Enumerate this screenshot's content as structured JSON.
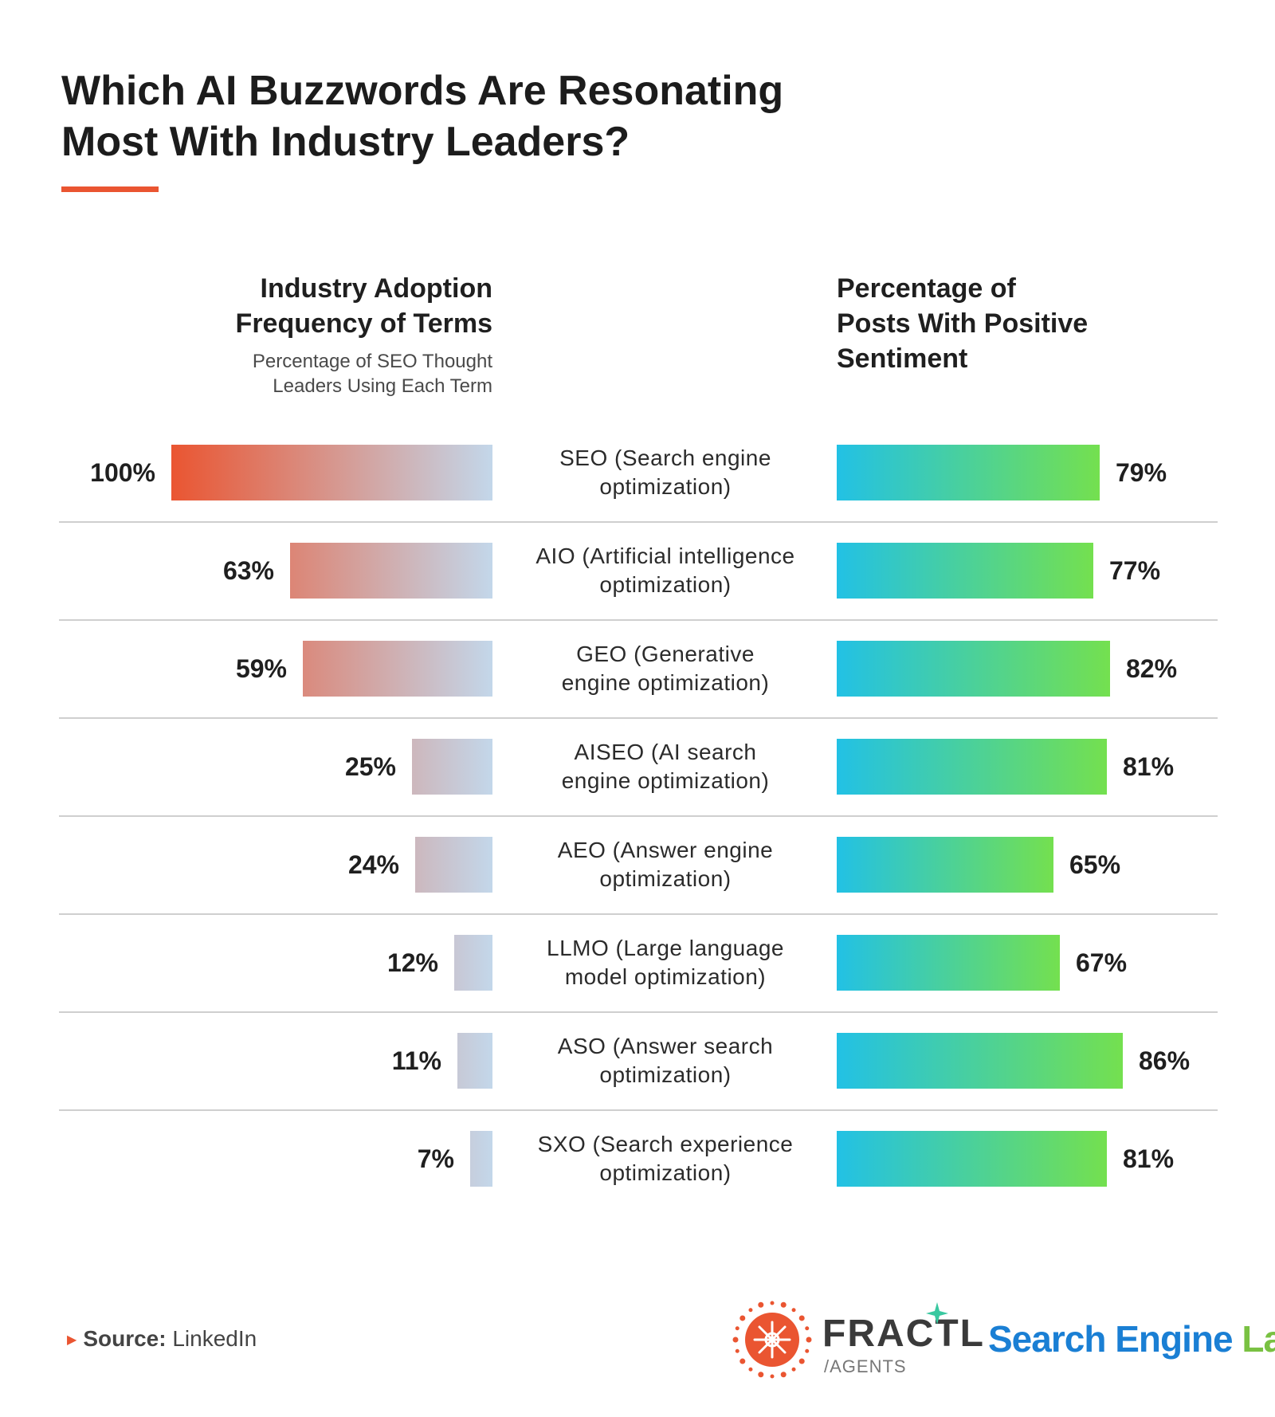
{
  "title": [
    "Which AI Buzzwords Are Resonating",
    "Most With Industry Leaders?"
  ],
  "colors": {
    "accent": "#ea5531",
    "adoption_gradient": [
      "#ea5531",
      "#c3d7ea"
    ],
    "sentiment_gradient": [
      "#22c1e5",
      "#74e04f"
    ],
    "divider": "#cfcfcf"
  },
  "chart_data": {
    "type": "bar",
    "orientation": "horizontal",
    "layout": "mirrored",
    "categories": [
      [
        "SEO (Search engine",
        "optimization)"
      ],
      [
        "AIO (Artificial intelligence",
        "optimization)"
      ],
      [
        "GEO (Generative",
        "engine optimization)"
      ],
      [
        "AISEO (AI search",
        "engine optimization)"
      ],
      [
        "AEO (Answer engine",
        "optimization)"
      ],
      [
        "LLMO (Large language",
        "model optimization)"
      ],
      [
        "ASO (Answer search",
        "optimization)"
      ],
      [
        "SXO (Search experience",
        "optimization)"
      ]
    ],
    "series": [
      {
        "name": [
          "Industry Adoption",
          "Frequency of Terms"
        ],
        "subtitle": [
          "Percentage of SEO Thought",
          "Leaders Using Each Term"
        ],
        "values": [
          100,
          63,
          59,
          25,
          24,
          12,
          11,
          7
        ],
        "labels": [
          "100%",
          "63%",
          "59%",
          "25%",
          "24%",
          "12%",
          "11%",
          "7%"
        ]
      },
      {
        "name": [
          "Percentage of",
          "Posts With Positive",
          "Sentiment"
        ],
        "values": [
          79,
          77,
          82,
          81,
          65,
          67,
          86,
          81
        ],
        "labels": [
          "79%",
          "77%",
          "82%",
          "81%",
          "65%",
          "67%",
          "86%",
          "81%"
        ]
      }
    ],
    "unit": "%",
    "xlim": [
      0,
      100
    ]
  },
  "source": {
    "label": "Source:",
    "value": "LinkedIn"
  },
  "logos": {
    "fractl": {
      "name": "FRACTL",
      "sub": "/AGENTS"
    },
    "search_engine_land": {
      "part1": "Search Engine",
      "part2": "Land"
    }
  }
}
